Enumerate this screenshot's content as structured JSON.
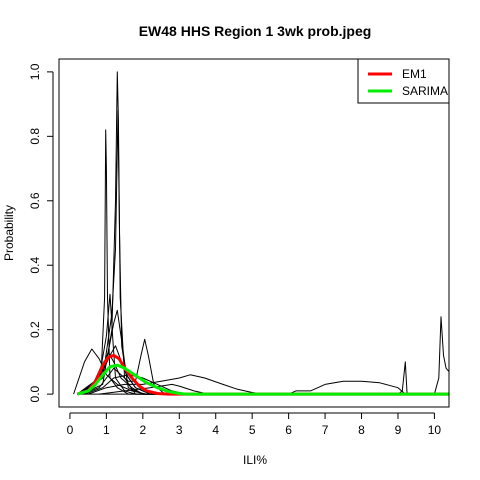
{
  "chart_data": {
    "type": "line",
    "title": "EW48 HHS Region 1 3wk prob.jpeg",
    "xlabel": "ILI%",
    "ylabel": "Probability",
    "xlim": [
      -0.3,
      10.4
    ],
    "ylim": [
      -0.04,
      1.04
    ],
    "x_ticks": [
      0,
      1,
      2,
      3,
      4,
      5,
      6,
      7,
      8,
      9,
      10
    ],
    "y_ticks": [
      0.0,
      0.2,
      0.4,
      0.6,
      0.8,
      1.0
    ],
    "x_tick_labels": [
      "0",
      "1",
      "2",
      "3",
      "4",
      "5",
      "6",
      "7",
      "8",
      "9",
      "10"
    ],
    "y_tick_labels": [
      "0.0",
      "0.2",
      "0.4",
      "0.6",
      "0.8",
      "1.0"
    ],
    "grid": false,
    "legend_position": "top-right",
    "series": [
      {
        "name": "EM1",
        "color": "#ff0000",
        "width": 3,
        "points": [
          [
            0.2,
            0
          ],
          [
            0.5,
            0.01
          ],
          [
            0.7,
            0.04
          ],
          [
            0.9,
            0.09
          ],
          [
            1.05,
            0.115
          ],
          [
            1.2,
            0.12
          ],
          [
            1.35,
            0.11
          ],
          [
            1.5,
            0.08
          ],
          [
            1.7,
            0.05
          ],
          [
            1.9,
            0.025
          ],
          [
            2.1,
            0.01
          ],
          [
            2.4,
            0.002
          ],
          [
            2.7,
            0
          ],
          [
            10.4,
            0
          ]
        ]
      },
      {
        "name": "SARIMA",
        "color": "#00ee00",
        "width": 3,
        "points": [
          [
            0.2,
            0
          ],
          [
            0.5,
            0.01
          ],
          [
            0.7,
            0.03
          ],
          [
            0.9,
            0.06
          ],
          [
            1.1,
            0.085
          ],
          [
            1.3,
            0.09
          ],
          [
            1.5,
            0.08
          ],
          [
            1.7,
            0.065
          ],
          [
            1.9,
            0.05
          ],
          [
            2.1,
            0.035
          ],
          [
            2.4,
            0.02
          ],
          [
            2.7,
            0.008
          ],
          [
            3.0,
            0.002
          ],
          [
            3.2,
            0
          ],
          [
            10.4,
            0
          ]
        ]
      },
      {
        "name": "",
        "color": "#000000",
        "width": 1,
        "points": [
          [
            0.2,
            0
          ],
          [
            0.6,
            0.02
          ],
          [
            0.85,
            0.05
          ],
          [
            0.95,
            0.3
          ],
          [
            0.98,
            0.82
          ],
          [
            1.0,
            0.7
          ],
          [
            1.03,
            0.3
          ],
          [
            1.1,
            0.05
          ],
          [
            1.3,
            0.02
          ],
          [
            1.6,
            0
          ],
          [
            10.4,
            0
          ]
        ]
      },
      {
        "name": "",
        "color": "#000000",
        "width": 1,
        "points": [
          [
            0.3,
            0
          ],
          [
            0.9,
            0.03
          ],
          [
            1.15,
            0.2
          ],
          [
            1.25,
            0.6
          ],
          [
            1.3,
            1.0
          ],
          [
            1.33,
            0.85
          ],
          [
            1.38,
            0.3
          ],
          [
            1.5,
            0.05
          ],
          [
            1.8,
            0
          ],
          [
            10.4,
            0
          ]
        ]
      },
      {
        "name": "",
        "color": "#000000",
        "width": 1,
        "points": [
          [
            0.2,
            0
          ],
          [
            0.8,
            0.05
          ],
          [
            1.0,
            0.18
          ],
          [
            1.1,
            0.31
          ],
          [
            1.17,
            0.18
          ],
          [
            1.25,
            0.05
          ],
          [
            1.5,
            0.01
          ],
          [
            1.8,
            0
          ],
          [
            10.4,
            0
          ]
        ]
      },
      {
        "name": "",
        "color": "#000000",
        "width": 1,
        "points": [
          [
            0.3,
            0
          ],
          [
            0.9,
            0.05
          ],
          [
            1.15,
            0.25
          ],
          [
            1.25,
            0.45
          ],
          [
            1.32,
            0.88
          ],
          [
            1.36,
            0.5
          ],
          [
            1.42,
            0.15
          ],
          [
            1.6,
            0.02
          ],
          [
            2.0,
            0
          ],
          [
            10.4,
            0
          ]
        ]
      },
      {
        "name": "",
        "color": "#000000",
        "width": 1,
        "points": [
          [
            0.1,
            0
          ],
          [
            0.4,
            0.1
          ],
          [
            0.6,
            0.14
          ],
          [
            0.8,
            0.11
          ],
          [
            1.0,
            0.06
          ],
          [
            1.3,
            0.03
          ],
          [
            1.7,
            0.01
          ],
          [
            2.1,
            0
          ],
          [
            10.4,
            0
          ]
        ]
      },
      {
        "name": "",
        "color": "#000000",
        "width": 1,
        "points": [
          [
            0.2,
            0
          ],
          [
            0.7,
            0.03
          ],
          [
            1.0,
            0.1
          ],
          [
            1.2,
            0.22
          ],
          [
            1.3,
            0.26
          ],
          [
            1.4,
            0.18
          ],
          [
            1.55,
            0.06
          ],
          [
            1.8,
            0.02
          ],
          [
            2.2,
            0
          ],
          [
            10.4,
            0
          ]
        ]
      },
      {
        "name": "",
        "color": "#000000",
        "width": 1,
        "points": [
          [
            0.3,
            0
          ],
          [
            0.8,
            0.02
          ],
          [
            1.0,
            0.05
          ],
          [
            1.2,
            0.08
          ],
          [
            1.4,
            0.06
          ],
          [
            1.6,
            0.04
          ],
          [
            1.8,
            0.04
          ],
          [
            1.95,
            0.12
          ],
          [
            2.05,
            0.17
          ],
          [
            2.15,
            0.12
          ],
          [
            2.3,
            0.03
          ],
          [
            2.6,
            0
          ],
          [
            10.4,
            0
          ]
        ]
      },
      {
        "name": "",
        "color": "#000000",
        "width": 1,
        "points": [
          [
            0.5,
            0
          ],
          [
            1.0,
            0.02
          ],
          [
            1.5,
            0.03
          ],
          [
            2.0,
            0.03
          ],
          [
            2.5,
            0.04
          ],
          [
            3.0,
            0.05
          ],
          [
            3.3,
            0.06
          ],
          [
            3.7,
            0.05
          ],
          [
            4.2,
            0.03
          ],
          [
            4.6,
            0.015
          ],
          [
            5.0,
            0.005
          ],
          [
            5.3,
            0
          ],
          [
            10.4,
            0
          ]
        ]
      },
      {
        "name": "",
        "color": "#000000",
        "width": 1,
        "points": [
          [
            0.8,
            0
          ],
          [
            1.5,
            0.01
          ],
          [
            2.2,
            0.02
          ],
          [
            2.8,
            0.03
          ],
          [
            3.0,
            0.025
          ],
          [
            3.4,
            0.01
          ],
          [
            3.8,
            0
          ],
          [
            10.4,
            0
          ]
        ]
      },
      {
        "name": "",
        "color": "#000000",
        "width": 1,
        "points": [
          [
            0.2,
            0
          ],
          [
            6.0,
            0
          ],
          [
            6.2,
            0.01
          ],
          [
            6.6,
            0.01
          ],
          [
            7.0,
            0.03
          ],
          [
            7.5,
            0.04
          ],
          [
            8.0,
            0.04
          ],
          [
            8.5,
            0.035
          ],
          [
            9.0,
            0.02
          ],
          [
            9.1,
            0.01
          ],
          [
            9.2,
            0
          ],
          [
            10.4,
            0
          ]
        ]
      },
      {
        "name": "",
        "color": "#000000",
        "width": 1,
        "points": [
          [
            9.0,
            0
          ],
          [
            9.12,
            0.01
          ],
          [
            9.2,
            0.1
          ],
          [
            9.25,
            0
          ],
          [
            10.4,
            0
          ]
        ]
      },
      {
        "name": "",
        "color": "#000000",
        "width": 1,
        "points": [
          [
            10.0,
            0
          ],
          [
            10.12,
            0.05
          ],
          [
            10.18,
            0.24
          ],
          [
            10.25,
            0.12
          ],
          [
            10.32,
            0.08
          ],
          [
            10.4,
            0.07
          ]
        ]
      },
      {
        "name": "",
        "color": "#000000",
        "width": 1,
        "points": [
          [
            0.2,
            0
          ],
          [
            0.6,
            0.03
          ],
          [
            0.9,
            0.07
          ],
          [
            1.1,
            0.12
          ],
          [
            1.25,
            0.15
          ],
          [
            1.35,
            0.12
          ],
          [
            1.55,
            0.06
          ],
          [
            1.8,
            0.02
          ],
          [
            2.2,
            0
          ],
          [
            10.4,
            0
          ]
        ]
      },
      {
        "name": "",
        "color": "#000000",
        "width": 1,
        "points": [
          [
            0.3,
            0
          ],
          [
            0.7,
            0.04
          ],
          [
            0.95,
            0.1
          ],
          [
            1.05,
            0.13
          ],
          [
            1.2,
            0.1
          ],
          [
            1.4,
            0.05
          ],
          [
            1.7,
            0.02
          ],
          [
            2.0,
            0
          ],
          [
            10.4,
            0
          ]
        ]
      },
      {
        "name": "",
        "color": "#000000",
        "width": 1,
        "points": [
          [
            0.4,
            0
          ],
          [
            0.9,
            0.02
          ],
          [
            1.2,
            0.05
          ],
          [
            1.6,
            0.06
          ],
          [
            2.0,
            0.05
          ],
          [
            2.4,
            0.03
          ],
          [
            2.8,
            0.01
          ],
          [
            3.2,
            0
          ],
          [
            10.4,
            0
          ]
        ]
      }
    ]
  }
}
